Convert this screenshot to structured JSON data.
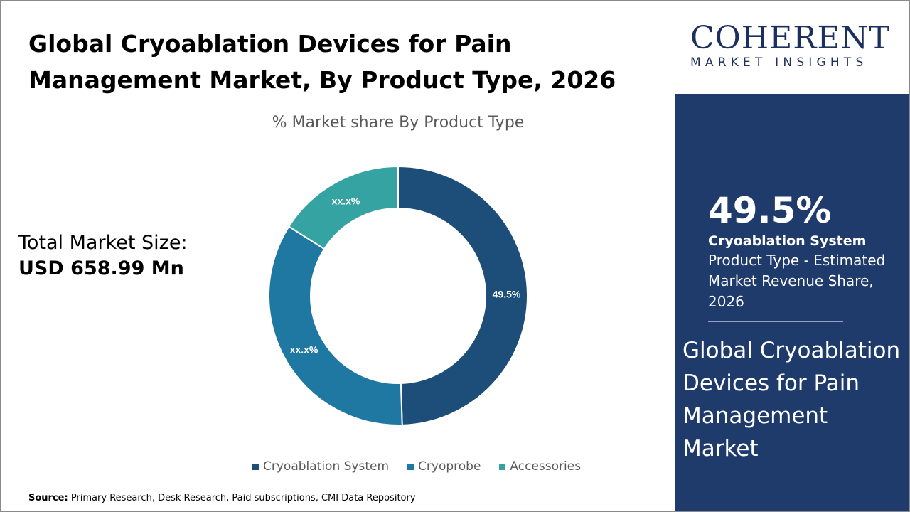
{
  "title": "Global Cryoablation Devices for Pain Management Market, By Product Type, 2026",
  "total_market": {
    "label": "Total Market Size:",
    "value": "USD 658.99 Mn"
  },
  "source": {
    "label": "Source:",
    "text": " Primary Research, Desk Research, Paid subscriptions, CMI Data Repository"
  },
  "logo": {
    "big": "COHERENT",
    "small": "MARKET INSIGHTS"
  },
  "side_panel": {
    "stat": "49.5%",
    "segment": "Cryoablation System",
    "description": "Product Type - Estimated Market Revenue Share, 2026",
    "market_name": "Global Cryoablation Devices for Pain Management Market"
  },
  "chart_data": {
    "type": "pie",
    "subtype": "donut",
    "title": "% Market share By Product Type",
    "legend_position": "bottom",
    "slices": [
      {
        "name": "Cryoablation System",
        "value": 49.5,
        "label": "49.5%",
        "color": "#1d4e79"
      },
      {
        "name": "Cryoprobe",
        "value": 34.5,
        "label": "xx.x%",
        "color": "#1f78a1"
      },
      {
        "name": "Accessories",
        "value": 16.0,
        "label": "xx.x%",
        "color": "#36a3a3"
      }
    ]
  }
}
